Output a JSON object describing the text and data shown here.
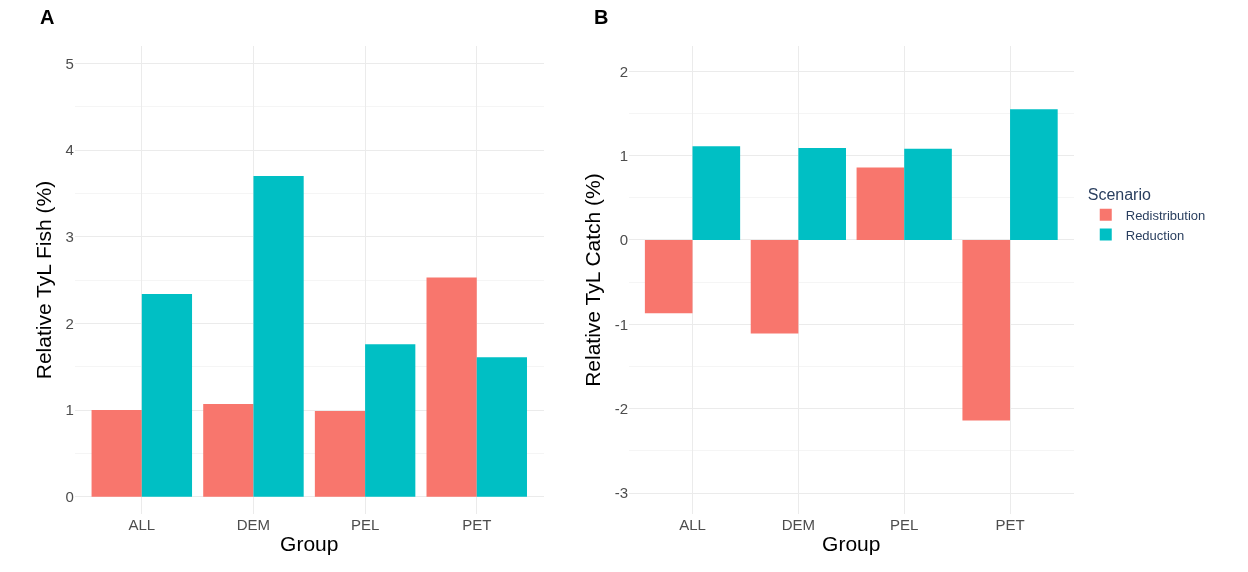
{
  "chart_data": [
    {
      "type": "bar",
      "title": "A",
      "xlabel": "Group",
      "ylabel": "Relative TyL Fish (%)",
      "categories": [
        "ALL",
        "DEM",
        "PEL",
        "PET"
      ],
      "series": [
        {
          "color": "#f8766d",
          "values": [
            1.0,
            1.07,
            0.99,
            2.53
          ]
        },
        {
          "color": "#00bfc4",
          "values": [
            2.34,
            3.7,
            1.76,
            1.61
          ]
        }
      ],
      "ylim": [
        -0.2,
        5.2
      ],
      "yticks": [
        0,
        1,
        2,
        3,
        4,
        5
      ],
      "grid": true,
      "legend": false
    },
    {
      "type": "bar",
      "title": "B",
      "xlabel": "Group",
      "ylabel": "Relative TyL Catch (%)",
      "legend_title": "Scenario",
      "categories": [
        "ALL",
        "DEM",
        "PEL",
        "PET"
      ],
      "series": [
        {
          "name": "Redistribution",
          "color": "#f8766d",
          "values": [
            -0.87,
            -1.11,
            0.86,
            -2.14
          ]
        },
        {
          "name": "Reduction",
          "color": "#00bfc4",
          "values": [
            1.11,
            1.09,
            1.08,
            1.55
          ]
        }
      ],
      "ylim": [
        -3.25,
        2.3
      ],
      "yticks": [
        -3,
        -2,
        -1,
        0,
        1,
        2
      ],
      "grid": true,
      "legend": "right"
    }
  ]
}
